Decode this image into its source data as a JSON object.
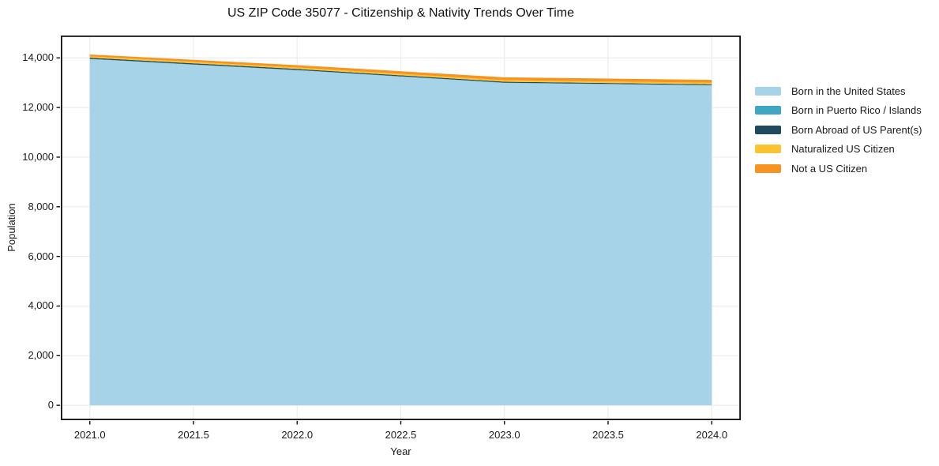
{
  "chart_data": {
    "type": "area",
    "stacked": true,
    "title": "US ZIP Code 35077 - Citizenship & Nativity Trends Over Time",
    "xlabel": "Year",
    "ylabel": "Population",
    "x": [
      2021,
      2022,
      2023,
      2024
    ],
    "series": [
      {
        "name": "Born in the United States",
        "color": "#a6d3e8",
        "values": [
          13950,
          13500,
          12990,
          12890
        ]
      },
      {
        "name": "Born in Puerto Rico / Islands",
        "color": "#3fa7c4",
        "values": [
          12,
          12,
          10,
          10
        ]
      },
      {
        "name": "Born Abroad of US Parent(s)",
        "color": "#1f4a5e",
        "values": [
          45,
          42,
          40,
          36
        ]
      },
      {
        "name": "Naturalized US Citizen",
        "color": "#fbc42e",
        "values": [
          55,
          58,
          62,
          60
        ]
      },
      {
        "name": "Not a US Citizen",
        "color": "#f69321",
        "values": [
          75,
          95,
          115,
          118
        ]
      }
    ],
    "xticks": [
      2021.0,
      2021.5,
      2022.0,
      2022.5,
      2023.0,
      2023.5,
      2024.0
    ],
    "xtick_labels": [
      "2021.0",
      "2021.5",
      "2022.0",
      "2022.5",
      "2023.0",
      "2023.5",
      "2024.0"
    ],
    "yticks": [
      0,
      2000,
      4000,
      6000,
      8000,
      10000,
      12000,
      14000
    ],
    "ytick_labels": [
      "0",
      "2,000",
      "4,000",
      "6,000",
      "8,000",
      "10,000",
      "12,000",
      "14,000"
    ],
    "xlim": [
      2020.86,
      2024.14
    ],
    "ylim": [
      -600,
      14900
    ],
    "grid": true,
    "legend_position": "right",
    "style": {
      "grid_color": "#ececec",
      "spine_color": "#111111",
      "tick_color": "#111111",
      "text_color": "#1a1a1a",
      "background": "#ffffff"
    }
  }
}
